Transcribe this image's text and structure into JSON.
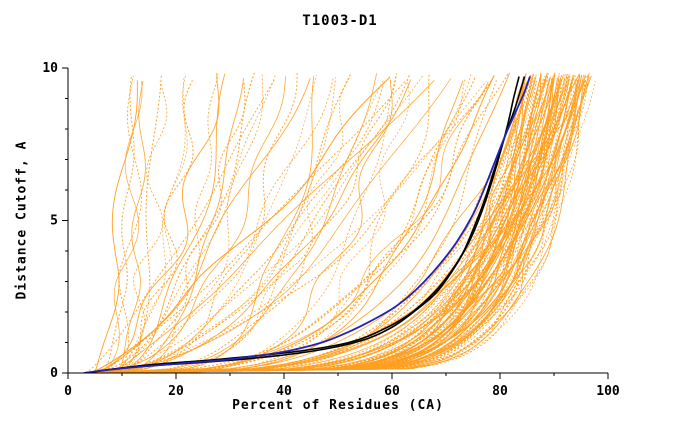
{
  "chart_data": {
    "type": "line",
    "title": "T1003-D1",
    "xlabel": "Percent of Residues (CA)",
    "ylabel": "Distance Cutoff, A",
    "xlim": [
      0,
      100
    ],
    "ylim": [
      0,
      10
    ],
    "x_ticks": [
      0,
      20,
      40,
      60,
      80,
      100
    ],
    "x_minor_ticks": [
      10,
      30,
      50,
      70,
      90
    ],
    "y_ticks": [
      0,
      5,
      10
    ],
    "y_minor_ticks": [
      1,
      2,
      3,
      4,
      6,
      7,
      8,
      9
    ],
    "grid": false,
    "legend": "none",
    "colors": {
      "background_models": "#FF9E1F",
      "highlight_black": "#000000",
      "highlight_blue": "#2222B4",
      "axis": "#000000"
    },
    "series": [
      {
        "name": "highlight-black-1",
        "color": "highlight_black",
        "width": 1.6,
        "points": [
          [
            3,
            0
          ],
          [
            12,
            0.2
          ],
          [
            25,
            0.35
          ],
          [
            38,
            0.55
          ],
          [
            48,
            0.8
          ],
          [
            55,
            1.1
          ],
          [
            60,
            1.5
          ],
          [
            64,
            2.0
          ],
          [
            68,
            2.6
          ],
          [
            71,
            3.3
          ],
          [
            74,
            4.2
          ],
          [
            76,
            5.0
          ],
          [
            78,
            6.0
          ],
          [
            80,
            7.2
          ],
          [
            81.5,
            8.2
          ],
          [
            82.5,
            9.0
          ],
          [
            83.5,
            9.7
          ]
        ]
      },
      {
        "name": "highlight-black-2",
        "color": "highlight_black",
        "width": 1.6,
        "points": [
          [
            3,
            0
          ],
          [
            14,
            0.25
          ],
          [
            28,
            0.45
          ],
          [
            42,
            0.7
          ],
          [
            52,
            1.0
          ],
          [
            58,
            1.4
          ],
          [
            63,
            1.9
          ],
          [
            67,
            2.5
          ],
          [
            70,
            3.1
          ],
          [
            73,
            3.9
          ],
          [
            75,
            4.7
          ],
          [
            77,
            5.6
          ],
          [
            79,
            6.7
          ],
          [
            81,
            7.8
          ],
          [
            83,
            8.8
          ],
          [
            84.5,
            9.7
          ]
        ]
      },
      {
        "name": "highlight-blue",
        "color": "highlight_blue",
        "width": 1.8,
        "points": [
          [
            3,
            0
          ],
          [
            10,
            0.15
          ],
          [
            20,
            0.3
          ],
          [
            30,
            0.45
          ],
          [
            40,
            0.7
          ],
          [
            47,
            1.0
          ],
          [
            52,
            1.35
          ],
          [
            56,
            1.7
          ],
          [
            60,
            2.1
          ],
          [
            63,
            2.5
          ],
          [
            66,
            3.0
          ],
          [
            69,
            3.6
          ],
          [
            72,
            4.3
          ],
          [
            75,
            5.2
          ],
          [
            77,
            6.0
          ],
          [
            79,
            6.9
          ],
          [
            81,
            7.8
          ],
          [
            83,
            8.6
          ],
          [
            84.5,
            9.2
          ],
          [
            85.5,
            9.7
          ]
        ]
      }
    ],
    "background_models": {
      "description": "ensemble of orange model curves (percent of CA residues under each distance cutoff)",
      "count_cluster": 95,
      "count_scattered": 55,
      "cluster_xtop_range": [
        84,
        97
      ],
      "scattered_xtop_range": [
        11,
        84
      ],
      "x_start_range": [
        3,
        9
      ],
      "y_max": 9.7,
      "dashed_fraction": 0.55,
      "seed": 12345
    }
  }
}
